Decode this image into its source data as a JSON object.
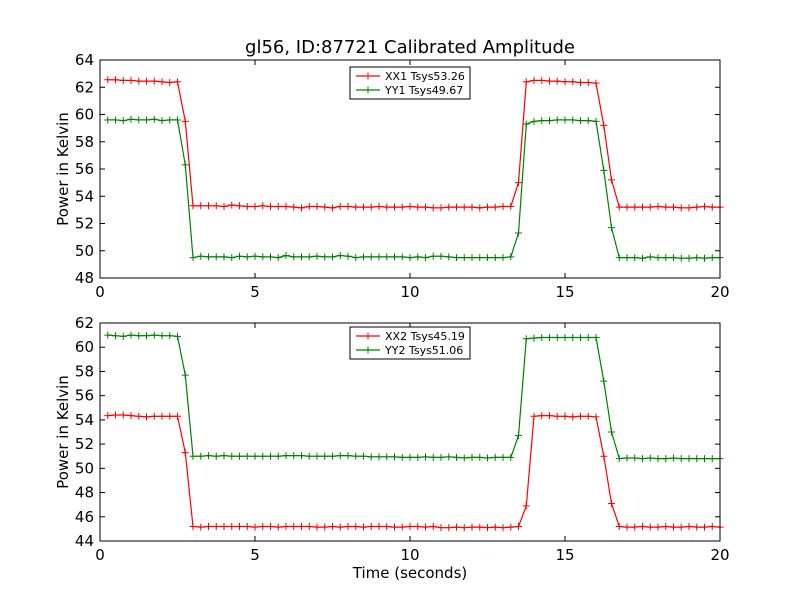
{
  "chart_data": {
    "type": "line",
    "title": "gl56, ID:87721 Calibrated Amplitude",
    "xlabel": "Time (seconds)",
    "legend_position": "top-center",
    "grid": false,
    "subplots": [
      {
        "ylabel": "Power in Kelvin",
        "xlim": [
          0,
          20
        ],
        "ylim": [
          48,
          64
        ],
        "xticks": [
          "0",
          "5",
          "10",
          "15",
          "20"
        ],
        "yticks": [
          "48",
          "50",
          "52",
          "54",
          "56",
          "58",
          "60",
          "62",
          "64"
        ],
        "series": [
          {
            "name": "XX1 Tsys53.26",
            "color": "#ff0000",
            "x": [
              0.25,
              0.5,
              0.75,
              1,
              1.25,
              1.5,
              1.75,
              2,
              2.25,
              2.5,
              2.75,
              3,
              3.25,
              3.5,
              3.75,
              4,
              4.25,
              4.5,
              4.75,
              5,
              5.25,
              5.5,
              5.75,
              6,
              6.25,
              6.5,
              6.75,
              7,
              7.25,
              7.5,
              7.75,
              8,
              8.25,
              8.5,
              8.75,
              9,
              9.25,
              9.5,
              9.75,
              10,
              10.25,
              10.5,
              10.75,
              11,
              11.25,
              11.5,
              11.75,
              12,
              12.25,
              12.5,
              12.75,
              13,
              13.25,
              13.5,
              13.75,
              14,
              14.25,
              14.5,
              14.75,
              15,
              15.25,
              15.5,
              15.75,
              16,
              16.25,
              16.5,
              16.75,
              17,
              17.25,
              17.5,
              17.75,
              18,
              18.25,
              18.5,
              18.75,
              19,
              19.25,
              19.5,
              19.75,
              20
            ],
            "y": [
              62.55,
              62.55,
              62.5,
              62.5,
              62.45,
              62.45,
              62.45,
              62.4,
              62.35,
              62.4,
              59.5,
              53.3,
              53.3,
              53.3,
              53.3,
              53.25,
              53.35,
              53.3,
              53.25,
              53.25,
              53.3,
              53.25,
              53.25,
              53.25,
              53.2,
              53.15,
              53.25,
              53.25,
              53.2,
              53.15,
              53.25,
              53.25,
              53.2,
              53.2,
              53.2,
              53.25,
              53.2,
              53.2,
              53.2,
              53.25,
              53.2,
              53.2,
              53.15,
              53.15,
              53.2,
              53.2,
              53.2,
              53.2,
              53.15,
              53.2,
              53.2,
              53.25,
              53.25,
              55.0,
              62.4,
              62.5,
              62.5,
              62.45,
              62.45,
              62.4,
              62.4,
              62.35,
              62.35,
              62.3,
              59.2,
              55.2,
              53.2,
              53.2,
              53.2,
              53.2,
              53.2,
              53.25,
              53.2,
              53.2,
              53.15,
              53.15,
              53.2,
              53.25,
              53.2,
              53.2
            ],
            "x_start_index_note": ""
          },
          {
            "name": "YY1 Tsys49.67",
            "color": "#008000",
            "x": [
              0.25,
              0.5,
              0.75,
              1,
              1.25,
              1.5,
              1.75,
              2,
              2.25,
              2.5,
              2.75,
              3,
              3.25,
              3.5,
              3.75,
              4,
              4.25,
              4.5,
              4.75,
              5,
              5.25,
              5.5,
              5.75,
              6,
              6.25,
              6.5,
              6.75,
              7,
              7.25,
              7.5,
              7.75,
              8,
              8.25,
              8.5,
              8.75,
              9,
              9.25,
              9.5,
              9.75,
              10,
              10.25,
              10.5,
              10.75,
              11,
              11.25,
              11.5,
              11.75,
              12,
              12.25,
              12.5,
              12.75,
              13,
              13.25,
              13.5,
              13.75,
              14,
              14.25,
              14.5,
              14.75,
              15,
              15.25,
              15.5,
              15.75,
              16,
              16.25,
              16.5,
              16.75,
              17,
              17.25,
              17.5,
              17.75,
              18,
              18.25,
              18.5,
              18.75,
              19,
              19.25,
              19.5,
              19.75,
              20
            ],
            "y": [
              59.6,
              59.6,
              59.55,
              59.65,
              59.6,
              59.6,
              59.65,
              59.55,
              59.6,
              59.6,
              56.3,
              49.5,
              49.6,
              49.55,
              49.55,
              49.55,
              49.5,
              49.6,
              49.55,
              49.6,
              49.55,
              49.55,
              49.5,
              49.65,
              49.55,
              49.55,
              49.55,
              49.6,
              49.55,
              49.55,
              49.65,
              49.6,
              49.5,
              49.55,
              49.55,
              49.55,
              49.55,
              49.55,
              49.55,
              49.5,
              49.55,
              49.5,
              49.6,
              49.6,
              49.55,
              49.5,
              49.5,
              49.5,
              49.5,
              49.5,
              49.5,
              49.5,
              49.55,
              51.3,
              59.3,
              59.5,
              59.55,
              59.55,
              59.6,
              59.6,
              59.6,
              59.55,
              59.55,
              59.5,
              55.9,
              51.7,
              49.5,
              49.5,
              49.5,
              49.45,
              49.55,
              49.5,
              49.5,
              49.5,
              49.45,
              49.45,
              49.5,
              49.45,
              49.5,
              49.5
            ]
          }
        ]
      },
      {
        "ylabel": "Power in Kelvin",
        "xlim": [
          0,
          20
        ],
        "ylim": [
          44,
          62
        ],
        "xticks": [
          "0",
          "5",
          "10",
          "15",
          "20"
        ],
        "yticks": [
          "44",
          "46",
          "48",
          "50",
          "52",
          "54",
          "56",
          "58",
          "60",
          "62"
        ],
        "series": [
          {
            "name": "XX2 Tsys45.19",
            "color": "#ff0000",
            "x": [
              0.25,
              0.5,
              0.75,
              1,
              1.25,
              1.5,
              1.75,
              2,
              2.25,
              2.5,
              2.75,
              3,
              3.25,
              3.5,
              3.75,
              4,
              4.25,
              4.5,
              4.75,
              5,
              5.25,
              5.5,
              5.75,
              6,
              6.25,
              6.5,
              6.75,
              7,
              7.25,
              7.5,
              7.75,
              8,
              8.25,
              8.5,
              8.75,
              9,
              9.25,
              9.5,
              9.75,
              10,
              10.25,
              10.5,
              10.75,
              11,
              11.25,
              11.5,
              11.75,
              12,
              12.25,
              12.5,
              12.75,
              13,
              13.25,
              13.5,
              13.75,
              14,
              14.25,
              14.5,
              14.75,
              15,
              15.25,
              15.5,
              15.75,
              16,
              16.25,
              16.5,
              16.75,
              17,
              17.25,
              17.5,
              17.75,
              18,
              18.25,
              18.5,
              18.75,
              19,
              19.25,
              19.5,
              19.75,
              20
            ],
            "y": [
              54.35,
              54.4,
              54.4,
              54.35,
              54.3,
              54.25,
              54.3,
              54.3,
              54.3,
              54.3,
              51.3,
              45.2,
              45.15,
              45.2,
              45.2,
              45.2,
              45.2,
              45.2,
              45.2,
              45.15,
              45.2,
              45.2,
              45.15,
              45.2,
              45.2,
              45.2,
              45.2,
              45.15,
              45.15,
              45.2,
              45.15,
              45.2,
              45.2,
              45.15,
              45.2,
              45.2,
              45.2,
              45.15,
              45.15,
              45.2,
              45.2,
              45.15,
              45.2,
              45.1,
              45.1,
              45.15,
              45.1,
              45.15,
              45.15,
              45.1,
              45.15,
              45.1,
              45.15,
              45.2,
              46.9,
              54.3,
              54.35,
              54.35,
              54.3,
              54.3,
              54.25,
              54.3,
              54.3,
              54.25,
              51.0,
              47.1,
              45.2,
              45.15,
              45.15,
              45.2,
              45.15,
              45.15,
              45.2,
              45.15,
              45.15,
              45.2,
              45.15,
              45.15,
              45.2,
              45.15
            ]
          },
          {
            "name": "YY2 Tsys51.06",
            "color": "#008000",
            "x": [
              0.25,
              0.5,
              0.75,
              1,
              1.25,
              1.5,
              1.75,
              2,
              2.25,
              2.5,
              2.75,
              3,
              3.25,
              3.5,
              3.75,
              4,
              4.25,
              4.5,
              4.75,
              5,
              5.25,
              5.5,
              5.75,
              6,
              6.25,
              6.5,
              6.75,
              7,
              7.25,
              7.5,
              7.75,
              8,
              8.25,
              8.5,
              8.75,
              9,
              9.25,
              9.5,
              9.75,
              10,
              10.25,
              10.5,
              10.75,
              11,
              11.25,
              11.5,
              11.75,
              12,
              12.25,
              12.5,
              12.75,
              13,
              13.25,
              13.5,
              13.75,
              14,
              14.25,
              14.5,
              14.75,
              15,
              15.25,
              15.5,
              15.75,
              16,
              16.25,
              16.5,
              16.75,
              17,
              17.25,
              17.5,
              17.75,
              18,
              18.25,
              18.5,
              18.75,
              19,
              19.25,
              19.5,
              19.75,
              20
            ],
            "y": [
              61.0,
              60.95,
              60.9,
              61.0,
              60.95,
              60.95,
              61.0,
              60.95,
              60.95,
              60.9,
              57.7,
              51.0,
              51.0,
              51.05,
              51.0,
              51.05,
              51.0,
              51.0,
              51.0,
              51.0,
              51.0,
              51.0,
              51.0,
              51.05,
              51.05,
              51.05,
              51.0,
              51.0,
              51.0,
              51.0,
              51.05,
              51.05,
              51.0,
              51.0,
              50.95,
              50.95,
              50.95,
              50.95,
              50.9,
              50.9,
              50.9,
              50.95,
              50.9,
              50.9,
              50.95,
              50.9,
              50.85,
              50.9,
              50.9,
              50.85,
              50.9,
              50.9,
              50.9,
              52.7,
              60.7,
              60.75,
              60.8,
              60.8,
              60.8,
              60.8,
              60.8,
              60.8,
              60.8,
              60.8,
              57.2,
              53.0,
              50.8,
              50.85,
              50.85,
              50.8,
              50.85,
              50.8,
              50.8,
              50.85,
              50.8,
              50.8,
              50.8,
              50.8,
              50.8,
              50.8
            ]
          }
        ]
      }
    ]
  }
}
